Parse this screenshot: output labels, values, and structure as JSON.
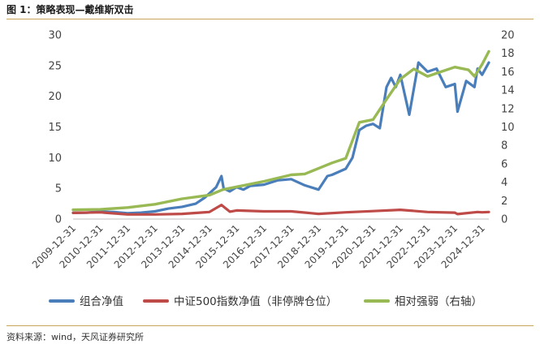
{
  "header": {
    "title": "图 1：策略表现—戴维斯双击"
  },
  "footer": {
    "source": "资料来源：wind，天风证券研究所"
  },
  "colors": {
    "portfolio": "#4a7ebb",
    "csi500": "#be4b48",
    "relative": "#98b954",
    "rule": "#c9a55a"
  },
  "chart_data": {
    "type": "line",
    "title": "",
    "x_type": "date",
    "x_ticks": [
      "2009-12-31",
      "2010-12-31",
      "2011-12-31",
      "2012-12-31",
      "2013-12-31",
      "2014-12-31",
      "2015-12-31",
      "2016-12-31",
      "2017-12-31",
      "2018-12-31",
      "2019-12-31",
      "2020-12-31",
      "2021-12-31",
      "2022-12-31",
      "2023-12-31",
      "2024-12-31"
    ],
    "y_left": {
      "range": [
        0,
        30
      ],
      "ticks": [
        "0",
        "5",
        "10",
        "15",
        "20",
        "25",
        "30"
      ]
    },
    "y_right": {
      "range": [
        0,
        20
      ],
      "ticks": [
        "0",
        "2",
        "4",
        "6",
        "8",
        "10",
        "12",
        "14",
        "16",
        "18",
        "20"
      ]
    },
    "grid": false,
    "legend_position": "bottom",
    "series": [
      {
        "name": "组合净值",
        "axis": "left",
        "color": "#4a7ebb",
        "points": [
          [
            "2009-12-31",
            1.0
          ],
          [
            "2010-06-30",
            1.05
          ],
          [
            "2010-12-31",
            1.2
          ],
          [
            "2011-06-30",
            1.15
          ],
          [
            "2011-12-31",
            0.95
          ],
          [
            "2012-06-30",
            1.05
          ],
          [
            "2012-12-31",
            1.25
          ],
          [
            "2013-06-30",
            1.7
          ],
          [
            "2013-12-31",
            2.0
          ],
          [
            "2014-06-30",
            2.5
          ],
          [
            "2014-10-31",
            3.5
          ],
          [
            "2015-03-31",
            5.2
          ],
          [
            "2015-06-10",
            7.0
          ],
          [
            "2015-07-10",
            5.0
          ],
          [
            "2015-09-30",
            4.5
          ],
          [
            "2015-12-31",
            5.2
          ],
          [
            "2016-03-31",
            4.8
          ],
          [
            "2016-06-30",
            5.4
          ],
          [
            "2016-12-31",
            5.6
          ],
          [
            "2017-06-30",
            6.3
          ],
          [
            "2017-12-31",
            6.5
          ],
          [
            "2018-06-30",
            5.5
          ],
          [
            "2018-12-31",
            4.8
          ],
          [
            "2019-04-30",
            7.0
          ],
          [
            "2019-06-30",
            7.2
          ],
          [
            "2019-12-31",
            8.2
          ],
          [
            "2020-03-31",
            10.0
          ],
          [
            "2020-06-30",
            14.5
          ],
          [
            "2020-09-30",
            15.2
          ],
          [
            "2020-12-31",
            15.5
          ],
          [
            "2021-03-31",
            14.8
          ],
          [
            "2021-06-30",
            21.5
          ],
          [
            "2021-08-31",
            23.0
          ],
          [
            "2021-10-31",
            21.5
          ],
          [
            "2021-12-31",
            23.5
          ],
          [
            "2022-04-30",
            17.0
          ],
          [
            "2022-08-31",
            25.5
          ],
          [
            "2022-12-31",
            24.0
          ],
          [
            "2023-04-30",
            24.5
          ],
          [
            "2023-08-31",
            21.5
          ],
          [
            "2023-12-31",
            22.0
          ],
          [
            "2024-02-05",
            17.5
          ],
          [
            "2024-05-31",
            22.5
          ],
          [
            "2024-09-20",
            21.5
          ],
          [
            "2024-10-31",
            24.5
          ],
          [
            "2024-12-31",
            23.5
          ],
          [
            "2025-03-31",
            25.5
          ]
        ]
      },
      {
        "name": "中证500指数净值（非停牌仓位）",
        "axis": "left",
        "color": "#be4b48",
        "points": [
          [
            "2009-12-31",
            1.0
          ],
          [
            "2010-12-31",
            1.1
          ],
          [
            "2011-12-31",
            0.75
          ],
          [
            "2012-12-31",
            0.75
          ],
          [
            "2013-12-31",
            0.85
          ],
          [
            "2014-12-31",
            1.15
          ],
          [
            "2015-06-10",
            2.3
          ],
          [
            "2015-09-30",
            1.2
          ],
          [
            "2015-12-31",
            1.4
          ],
          [
            "2016-12-31",
            1.25
          ],
          [
            "2017-12-31",
            1.25
          ],
          [
            "2018-12-31",
            0.85
          ],
          [
            "2019-12-31",
            1.1
          ],
          [
            "2020-12-31",
            1.3
          ],
          [
            "2021-12-31",
            1.5
          ],
          [
            "2022-12-31",
            1.15
          ],
          [
            "2023-12-31",
            1.05
          ],
          [
            "2024-02-05",
            0.8
          ],
          [
            "2024-10-31",
            1.15
          ],
          [
            "2024-12-31",
            1.1
          ],
          [
            "2025-03-31",
            1.15
          ]
        ]
      },
      {
        "name": "相对强弱（右轴）",
        "axis": "right",
        "color": "#98b954",
        "points": [
          [
            "2009-12-31",
            1.0
          ],
          [
            "2010-12-31",
            1.05
          ],
          [
            "2011-12-31",
            1.25
          ],
          [
            "2012-12-31",
            1.6
          ],
          [
            "2013-12-31",
            2.2
          ],
          [
            "2014-12-31",
            2.6
          ],
          [
            "2015-06-30",
            3.2
          ],
          [
            "2015-12-31",
            3.5
          ],
          [
            "2016-12-31",
            4.1
          ],
          [
            "2017-12-31",
            4.8
          ],
          [
            "2018-06-30",
            4.9
          ],
          [
            "2018-12-31",
            5.5
          ],
          [
            "2019-06-30",
            6.1
          ],
          [
            "2019-12-31",
            6.6
          ],
          [
            "2020-06-30",
            10.5
          ],
          [
            "2020-12-31",
            10.8
          ],
          [
            "2021-06-30",
            13.0
          ],
          [
            "2021-12-31",
            15.2
          ],
          [
            "2022-06-30",
            16.3
          ],
          [
            "2022-12-31",
            15.5
          ],
          [
            "2023-06-30",
            16.0
          ],
          [
            "2023-12-31",
            16.5
          ],
          [
            "2024-06-30",
            16.2
          ],
          [
            "2024-09-20",
            15.5
          ],
          [
            "2024-12-31",
            16.8
          ],
          [
            "2025-03-31",
            18.2
          ]
        ]
      }
    ]
  }
}
